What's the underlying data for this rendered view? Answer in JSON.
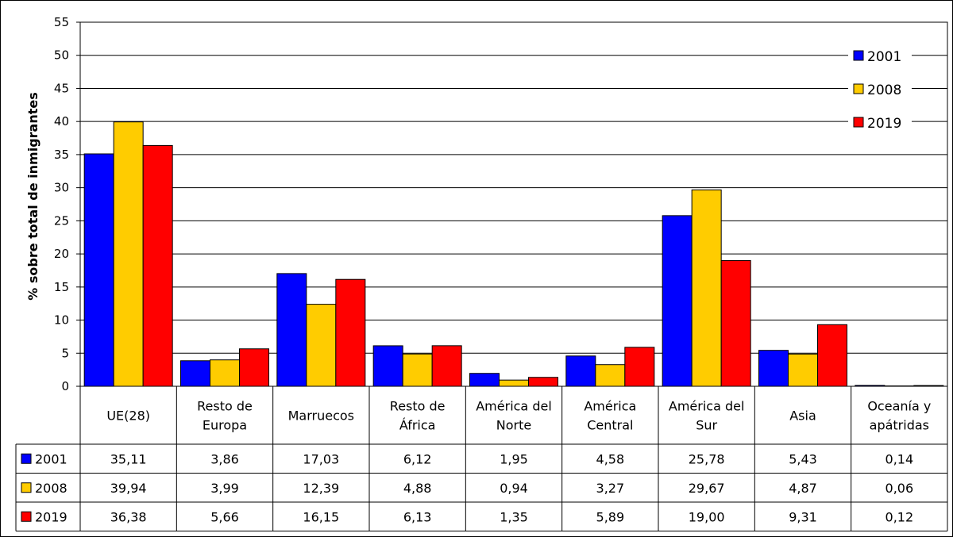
{
  "chart_data": {
    "type": "bar",
    "ylabel": "% sobre total de inmigrantes",
    "ylim": [
      0,
      55
    ],
    "yticks": [
      0,
      5,
      10,
      15,
      20,
      25,
      30,
      35,
      40,
      45,
      50,
      55
    ],
    "grid": true,
    "legend_position": "top-right",
    "categories": [
      "UE(28)",
      "Resto de Europa",
      "Marruecos",
      "Resto de África",
      "América del Norte",
      "América Central",
      "América del Sur",
      "Asia",
      "Oceanía y apátridas"
    ],
    "category_lines": [
      [
        "UE(28)"
      ],
      [
        "Resto de",
        "Europa"
      ],
      [
        "Marruecos"
      ],
      [
        "Resto de",
        "África"
      ],
      [
        "América del",
        "Norte"
      ],
      [
        "América",
        "Central"
      ],
      [
        "América del",
        "Sur"
      ],
      [
        "Asia"
      ],
      [
        "Oceanía y",
        "apátridas"
      ]
    ],
    "series": [
      {
        "name": "2001",
        "color": "#0000ff",
        "values": [
          35.11,
          3.86,
          17.03,
          6.12,
          1.95,
          4.58,
          25.78,
          5.43,
          0.14
        ],
        "labels": [
          "35,11",
          "3,86",
          "17,03",
          "6,12",
          "1,95",
          "4,58",
          "25,78",
          "5,43",
          "0,14"
        ]
      },
      {
        "name": "2008",
        "color": "#ffcc00",
        "values": [
          39.94,
          3.99,
          12.39,
          4.88,
          0.94,
          3.27,
          29.67,
          4.87,
          0.06
        ],
        "labels": [
          "39,94",
          "3,99",
          "12,39",
          "4,88",
          "0,94",
          "3,27",
          "29,67",
          "4,87",
          "0,06"
        ]
      },
      {
        "name": "2019",
        "color": "#ff0000",
        "values": [
          36.38,
          5.66,
          16.15,
          6.13,
          1.35,
          5.89,
          19.0,
          9.31,
          0.12
        ],
        "labels": [
          "36,38",
          "5,66",
          "16,15",
          "6,13",
          "1,35",
          "5,89",
          "19,00",
          "9,31",
          "0,12"
        ]
      }
    ]
  }
}
